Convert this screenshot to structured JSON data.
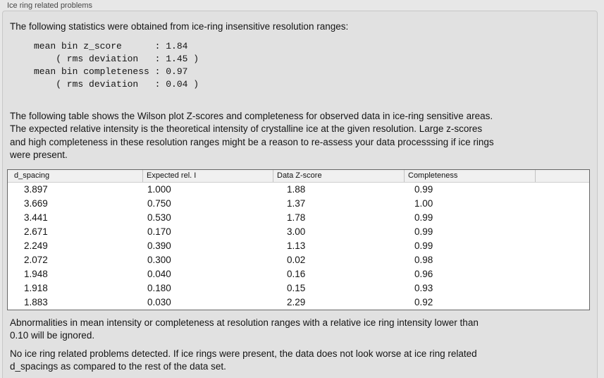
{
  "panel": {
    "title": "Ice ring related problems"
  },
  "intro": "The following statistics were obtained from ice-ring insensitive resolution ranges:",
  "stats_block": "mean bin z_score      : 1.84\n    ( rms deviation   : 1.45 )\nmean bin completeness : 0.97\n    ( rms deviation   : 0.04 )",
  "description": "The following table shows the Wilson plot Z-scores and completeness for observed data in ice-ring sensitive areas.\nThe expected relative intensity is the theoretical intensity of crystalline ice at the given resolution. Large z-scores\nand high completeness in these resolution ranges might be a reason to re-assess your data processsing if ice rings\nwere present.",
  "table": {
    "columns": [
      "d_spacing",
      "Expected rel. I",
      "Data Z-score",
      "Completeness",
      ""
    ],
    "rows": [
      [
        "3.897",
        "1.000",
        "1.88",
        "0.99"
      ],
      [
        "3.669",
        "0.750",
        "1.37",
        "1.00"
      ],
      [
        "3.441",
        "0.530",
        "1.78",
        "0.99"
      ],
      [
        "2.671",
        "0.170",
        "3.00",
        "0.99"
      ],
      [
        "2.249",
        "0.390",
        "1.13",
        "0.99"
      ],
      [
        "2.072",
        "0.300",
        "0.02",
        "0.98"
      ],
      [
        "1.948",
        "0.040",
        "0.16",
        "0.96"
      ],
      [
        "1.918",
        "0.180",
        "0.15",
        "0.93"
      ],
      [
        "1.883",
        "0.030",
        "2.29",
        "0.92"
      ]
    ]
  },
  "notes": {
    "ignore_note": "Abnormalities in mean intensity or completeness at resolution ranges with a relative ice ring intensity lower than\n0.10 will be ignored.",
    "conclusion": "No ice ring related problems detected. If ice rings were present, the data does not look worse at ice ring related\nd_spacings as compared to the rest of the data set."
  },
  "colors": {
    "page_background": "#e7e7e7",
    "box_background": "#e1e1e1",
    "table_background": "#ffffff",
    "table_border": "#676767",
    "header_background": "#f0f0f0",
    "text": "#141414"
  }
}
